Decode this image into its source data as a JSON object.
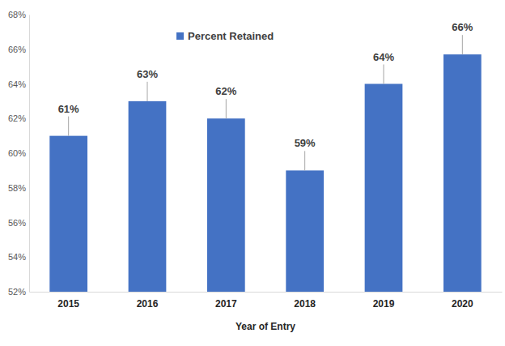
{
  "chart_data": {
    "type": "bar",
    "x_label": "Year of Entry",
    "categories": [
      "2015",
      "2016",
      "2017",
      "2018",
      "2019",
      "2020"
    ],
    "series": [
      {
        "name": "Percent Retained",
        "color": "#4472c4",
        "values": [
          61,
          63,
          62,
          59,
          64,
          65.7
        ],
        "value_labels": [
          "61%",
          "63%",
          "62%",
          "59%",
          "64%",
          "66%"
        ]
      }
    ],
    "ylim": [
      52,
      68
    ],
    "yticks": [
      {
        "value": 52,
        "label": "52%"
      },
      {
        "value": 54,
        "label": "54%"
      },
      {
        "value": 56,
        "label": "56%"
      },
      {
        "value": 58,
        "label": "58%"
      },
      {
        "value": 60,
        "label": "60%"
      },
      {
        "value": 62,
        "label": "62%"
      },
      {
        "value": 64,
        "label": "64%"
      },
      {
        "value": 66,
        "label": "66%"
      },
      {
        "value": 68,
        "label": "68%"
      }
    ],
    "grid": false,
    "legend": "top",
    "data_labels": true
  }
}
